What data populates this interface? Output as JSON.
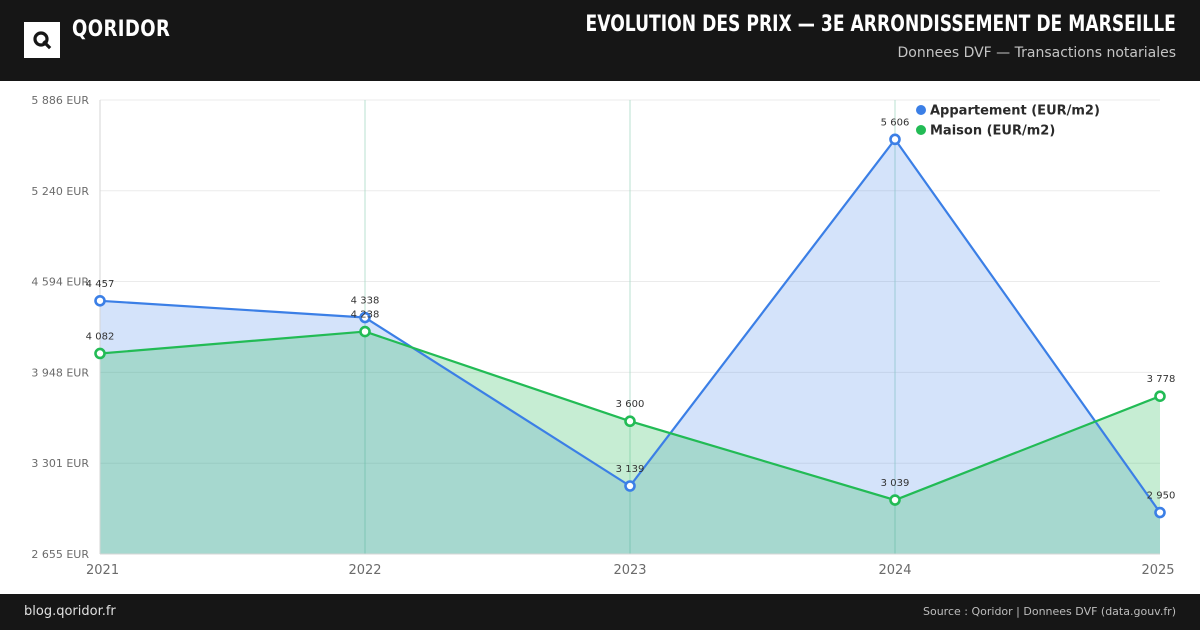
{
  "header": {
    "brand": "QORIDOR",
    "logo_letter": "Q",
    "title": "EVOLUTION DES PRIX — 3E ARRONDISSEMENT DE MARSEILLE",
    "subtitle": "Donnees DVF — Transactions notariales"
  },
  "footer": {
    "left": "blog.qoridor.fr",
    "right": "Source : Qoridor | Donnees DVF (data.gouv.fr)"
  },
  "chart_data": {
    "type": "area",
    "title": "EVOLUTION DES PRIX — 3E ARRONDISSEMENT DE MARSEILLE",
    "subtitle": "Donnees DVF — Transactions notariales",
    "x": [
      "2021",
      "2022",
      "2023",
      "2024",
      "2025"
    ],
    "ylim": [
      2655,
      5886
    ],
    "yticks": [
      2655,
      3301,
      3948,
      4594,
      5240,
      5886
    ],
    "ytick_labels": [
      "2 655 EUR",
      "3 301 EUR",
      "3 948 EUR",
      "4 594 EUR",
      "5 240 EUR",
      "5 886 EUR"
    ],
    "grid": true,
    "legend_position": "top-right",
    "series": [
      {
        "name": "Appartement (EUR/m2)",
        "color": "#3b7fe6",
        "fill": "#cfe0fb",
        "values": [
          4457,
          4338,
          3139,
          5606,
          2950
        ],
        "labels": [
          "4 457",
          "4 338",
          "3 139",
          "5 606",
          "2 950"
        ]
      },
      {
        "name": "Maison (EUR/m2)",
        "color": "#22bb55",
        "fill": "#c4efd3",
        "values": [
          4082,
          4238,
          3600,
          3039,
          3778
        ],
        "labels": [
          "4 082",
          "4 238",
          "3 600",
          "3 039",
          "3 778"
        ]
      }
    ]
  }
}
